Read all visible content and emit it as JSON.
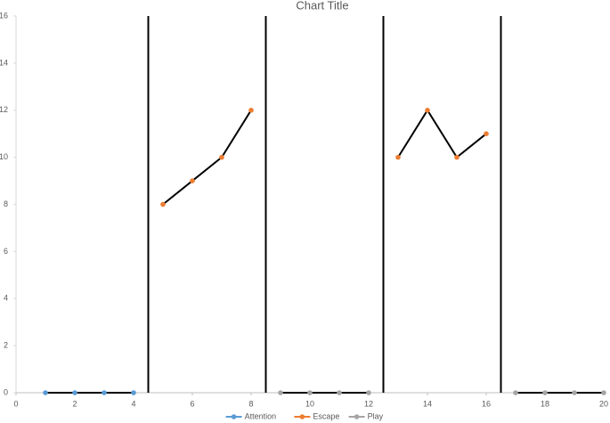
{
  "chart_data": {
    "type": "line",
    "title": "Chart Title",
    "x": [
      1,
      2,
      3,
      4,
      5,
      6,
      7,
      8,
      9,
      10,
      11,
      12,
      13,
      14,
      15,
      16,
      17,
      18,
      19,
      20
    ],
    "series": [
      {
        "name": "Attention",
        "color": "#5b9bd5",
        "values": [
          0,
          0,
          0,
          0,
          null,
          null,
          null,
          null,
          null,
          null,
          null,
          null,
          null,
          null,
          null,
          null,
          null,
          null,
          null,
          null
        ]
      },
      {
        "name": "Escape",
        "color": "#ed7d31",
        "values": [
          null,
          null,
          null,
          null,
          8,
          9,
          10,
          12,
          null,
          null,
          null,
          null,
          10,
          12,
          10,
          11,
          null,
          null,
          null,
          null
        ]
      },
      {
        "name": "Play",
        "color": "#a5a5a5",
        "values": [
          null,
          null,
          null,
          null,
          null,
          null,
          null,
          null,
          0,
          0,
          0,
          0,
          null,
          null,
          null,
          null,
          0,
          0,
          0,
          0
        ]
      }
    ],
    "line_color": "#000000",
    "phase_lines": [
      4.5,
      8.5,
      12.5,
      16.5
    ],
    "xlim": [
      0,
      20
    ],
    "xticks": [
      0,
      2,
      4,
      6,
      8,
      10,
      12,
      14,
      16,
      18,
      20
    ],
    "ylim": [
      0,
      16
    ],
    "yticks": [
      0,
      2,
      4,
      6,
      8,
      10,
      12,
      14,
      16
    ],
    "grid": false,
    "legend": "bottom"
  }
}
